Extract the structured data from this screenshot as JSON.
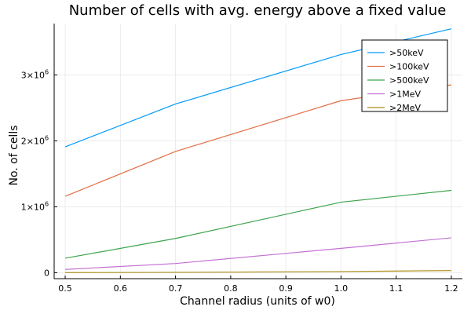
{
  "chart_data": {
    "type": "line",
    "title": "Number of cells with avg. energy above a fixed value",
    "xlabel": "Channel radius (units of w0)",
    "ylabel": "No. of cells",
    "x": [
      0.5,
      0.7,
      1.0,
      1.2
    ],
    "xlim": [
      0.48,
      1.22
    ],
    "ylim": [
      -90000,
      3780000
    ],
    "xticks": [
      0.5,
      0.6,
      0.7,
      0.8,
      0.9,
      1.0,
      1.1,
      1.2
    ],
    "xtick_labels": [
      "0.5",
      "0.6",
      "0.7",
      "0.8",
      "0.9",
      "1.0",
      "1.1",
      "1.2"
    ],
    "yticks": [
      0,
      1000000,
      2000000,
      3000000
    ],
    "ytick_labels": [
      "0",
      "1×10",
      "2×10",
      "3×10"
    ],
    "ytick_exponent": "6",
    "grid": true,
    "legend_position": "top-right",
    "series": [
      {
        "name": ">50keV",
        "color": "#009AFA",
        "values": [
          1910000,
          2560000,
          3310000,
          3700000
        ]
      },
      {
        "name": ">100keV",
        "color": "#E36F47",
        "values": [
          1160000,
          1840000,
          2610000,
          2850000
        ]
      },
      {
        "name": ">500keV",
        "color": "#3EA44E",
        "values": [
          220000,
          520000,
          1070000,
          1250000
        ]
      },
      {
        "name": ">1MeV",
        "color": "#C371D2",
        "values": [
          50000,
          140000,
          370000,
          530000
        ]
      },
      {
        "name": ">2MeV",
        "color": "#AC8D18",
        "values": [
          2000,
          6000,
          18000,
          33000
        ]
      }
    ]
  }
}
